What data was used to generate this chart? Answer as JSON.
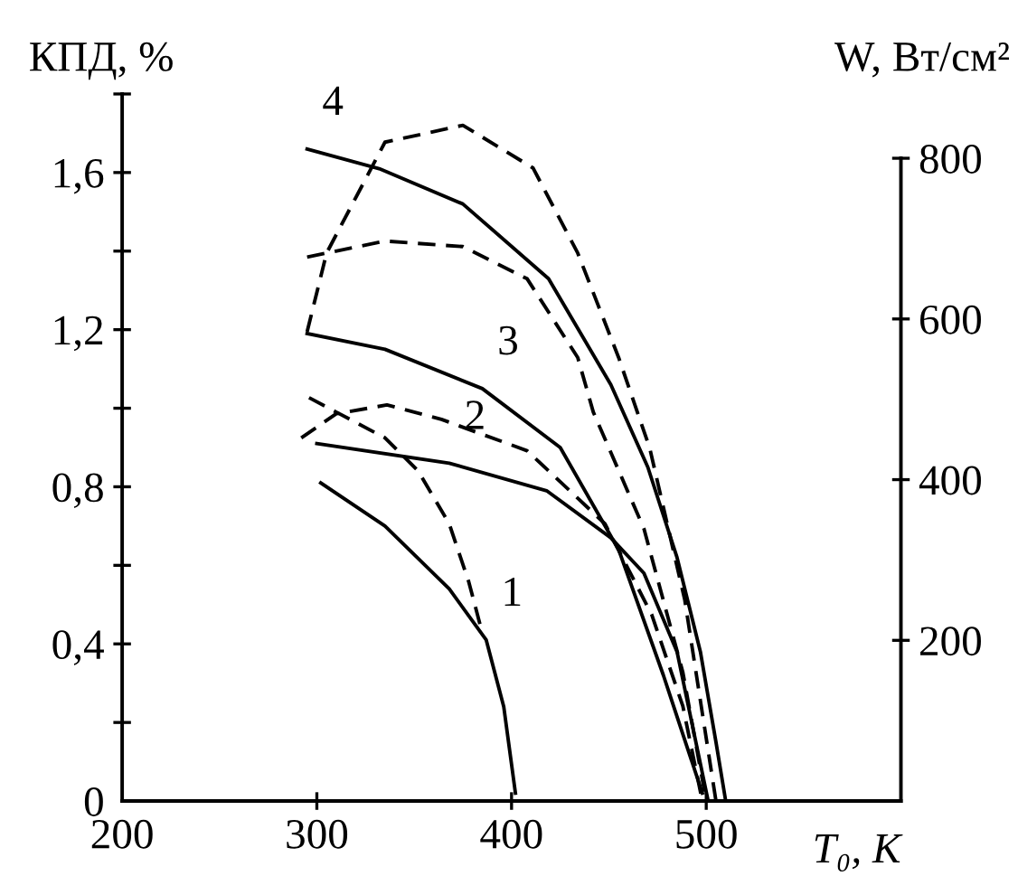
{
  "chart_data": {
    "type": "line",
    "xlabel": "T₀, K",
    "ylabel": "КПД, %",
    "y2label": "W, Вт/см²",
    "xlim": [
      200,
      600
    ],
    "xticks": [
      200,
      300,
      400,
      500
    ],
    "ylim": [
      0,
      1.8
    ],
    "yticks": [
      0,
      {
        "value": 0.2,
        "label": null
      },
      {
        "value": 0.4,
        "label": "0,4"
      },
      {
        "value": 0.6,
        "label": null
      },
      {
        "value": 0.8,
        "label": "0,8"
      },
      {
        "value": 1.0,
        "label": null
      },
      {
        "value": 1.2,
        "label": "1,2"
      },
      {
        "value": 1.4,
        "label": null
      },
      {
        "value": 1.6,
        "label": "1,6"
      },
      {
        "value": 1.8,
        "label": null
      }
    ],
    "y2lim": [
      0,
      880
    ],
    "y2ticks": [
      200,
      400,
      600,
      800
    ],
    "grid": false,
    "legend": false,
    "marker": "none",
    "series": [
      {
        "color": "#000000",
        "line_style": "solid",
        "x": [
          302,
          335,
          368,
          387,
          396,
          402
        ],
        "values": [
          0.81,
          0.7,
          0.54,
          0.41,
          0.24,
          0.02
        ]
      },
      {
        "color": "#000000",
        "line_style": "dashed",
        "axis": "y2",
        "x": [
          296,
          310,
          335,
          352,
          368,
          378,
          385
        ],
        "values": [
          502,
          484,
          452,
          411,
          345,
          273,
          209
        ]
      },
      {
        "color": "#000000",
        "line_style": "solid",
        "x": [
          300,
          368,
          418,
          451,
          468,
          485,
          501
        ],
        "values": [
          0.91,
          0.86,
          0.79,
          0.67,
          0.58,
          0.38,
          0.0
        ]
      },
      {
        "color": "#000000",
        "line_style": "dashed",
        "axis": "y2",
        "x": [
          292,
          310,
          336,
          364,
          408,
          448,
          472,
          488,
          498
        ],
        "values": [
          452,
          482,
          493,
          475,
          436,
          345,
          232,
          118,
          0
        ]
      },
      {
        "color": "#000000",
        "line_style": "solid",
        "x": [
          295,
          335,
          385,
          425,
          455,
          478,
          498
        ],
        "values": [
          1.19,
          1.15,
          1.05,
          0.9,
          0.64,
          0.32,
          0.02
        ]
      },
      {
        "color": "#000000",
        "line_style": "dashed",
        "axis": "y2",
        "x": [
          295,
          335,
          375,
          408,
          434,
          442,
          468,
          488,
          500
        ],
        "values": [
          677,
          697,
          690,
          650,
          552,
          484,
          339,
          160,
          0
        ]
      },
      {
        "color": "#000000",
        "line_style": "solid",
        "x": [
          295,
          332,
          375,
          419,
          451,
          470,
          485,
          497,
          505,
          510
        ],
        "values": [
          1.66,
          1.61,
          1.52,
          1.33,
          1.06,
          0.85,
          0.62,
          0.38,
          0.15,
          0.0
        ]
      },
      {
        "color": "#000000",
        "line_style": "dashed",
        "axis": "y2",
        "x": [
          295,
          305,
          335,
          375,
          411,
          434,
          455,
          471,
          489,
          505
        ],
        "values": [
          584,
          682,
          820,
          841,
          788,
          682,
          552,
          439,
          250,
          0
        ]
      }
    ],
    "annotations": [
      {
        "text": "1",
        "x": 387,
        "y": 0.41
      },
      {
        "text": "2",
        "x": 368,
        "y": 0.86
      },
      {
        "text": "3",
        "x": 385,
        "y": 1.05
      },
      {
        "text": "4",
        "x": 295,
        "y": 1.66
      }
    ]
  }
}
